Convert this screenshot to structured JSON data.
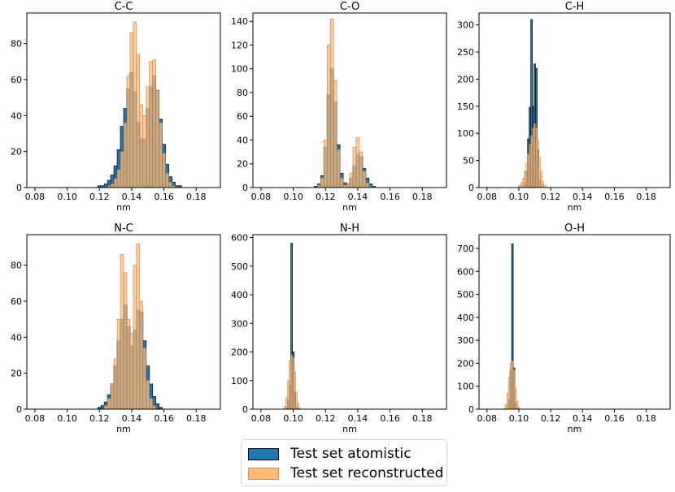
{
  "chart_data": [
    {
      "type": "histogram",
      "title": "C-C",
      "xlabel": "nm",
      "ylim": [
        0,
        97
      ],
      "yticks": [
        0,
        20,
        40,
        60,
        80
      ],
      "series": [
        {
          "name": "Test set atomistic",
          "color": "#1f77b4",
          "bins": [
            [
              0.12,
              1
            ],
            [
              0.122,
              1
            ],
            [
              0.124,
              2
            ],
            [
              0.126,
              4
            ],
            [
              0.128,
              7
            ],
            [
              0.13,
              12
            ],
            [
              0.132,
              21
            ],
            [
              0.134,
              34
            ],
            [
              0.136,
              44
            ],
            [
              0.138,
              55
            ],
            [
              0.14,
              64
            ],
            [
              0.142,
              53
            ],
            [
              0.144,
              36
            ],
            [
              0.146,
              27
            ],
            [
              0.148,
              27
            ],
            [
              0.15,
              44
            ],
            [
              0.152,
              56
            ],
            [
              0.154,
              62
            ],
            [
              0.156,
              54
            ],
            [
              0.158,
              38
            ],
            [
              0.16,
              24
            ],
            [
              0.162,
              13
            ],
            [
              0.164,
              6
            ],
            [
              0.166,
              3
            ],
            [
              0.168,
              1
            ],
            [
              0.17,
              1
            ]
          ]
        },
        {
          "name": "Test set reconstructed",
          "color": "#ffbb78",
          "bins": [
            [
              0.126,
              1
            ],
            [
              0.128,
              2
            ],
            [
              0.13,
              5
            ],
            [
              0.132,
              10
            ],
            [
              0.134,
              20
            ],
            [
              0.136,
              36
            ],
            [
              0.138,
              62
            ],
            [
              0.14,
              86
            ],
            [
              0.142,
              92
            ],
            [
              0.144,
              74
            ],
            [
              0.146,
              46
            ],
            [
              0.148,
              40
            ],
            [
              0.15,
              56
            ],
            [
              0.152,
              70
            ],
            [
              0.154,
              71
            ],
            [
              0.156,
              54
            ],
            [
              0.158,
              36
            ],
            [
              0.16,
              19
            ],
            [
              0.162,
              8
            ],
            [
              0.164,
              3
            ],
            [
              0.166,
              1
            ]
          ]
        }
      ]
    },
    {
      "type": "histogram",
      "title": "C-O",
      "xlabel": "nm",
      "ylim": [
        0,
        147
      ],
      "yticks": [
        0,
        20,
        40,
        60,
        80,
        100,
        120,
        140
      ],
      "series": [
        {
          "name": "Test set atomistic",
          "color": "#1f77b4",
          "bins": [
            [
              0.114,
              1
            ],
            [
              0.116,
              3
            ],
            [
              0.118,
              10
            ],
            [
              0.12,
              34
            ],
            [
              0.122,
              78
            ],
            [
              0.124,
              100
            ],
            [
              0.126,
              72
            ],
            [
              0.128,
              36
            ],
            [
              0.13,
              12
            ],
            [
              0.132,
              4
            ],
            [
              0.134,
              3
            ],
            [
              0.136,
              8
            ],
            [
              0.138,
              18
            ],
            [
              0.14,
              28
            ],
            [
              0.142,
              26
            ],
            [
              0.144,
              16
            ],
            [
              0.146,
              8
            ],
            [
              0.148,
              3
            ],
            [
              0.15,
              1
            ]
          ]
        },
        {
          "name": "Test set reconstructed",
          "color": "#ffbb78",
          "bins": [
            [
              0.116,
              2
            ],
            [
              0.118,
              8
            ],
            [
              0.12,
              40
            ],
            [
              0.122,
              120
            ],
            [
              0.124,
              142
            ],
            [
              0.126,
              90
            ],
            [
              0.128,
              32
            ],
            [
              0.13,
              8
            ],
            [
              0.132,
              2
            ],
            [
              0.134,
              3
            ],
            [
              0.136,
              12
            ],
            [
              0.138,
              34
            ],
            [
              0.14,
              42
            ],
            [
              0.142,
              30
            ],
            [
              0.144,
              14
            ],
            [
              0.146,
              4
            ],
            [
              0.148,
              1
            ]
          ]
        }
      ]
    },
    {
      "type": "histogram",
      "title": "C-H",
      "xlabel": "nm",
      "ylim": [
        0,
        322
      ],
      "yticks": [
        0,
        50,
        100,
        150,
        200,
        250,
        300
      ],
      "series": [
        {
          "name": "Test set atomistic",
          "color": "#1f77b4",
          "bins": [
            [
              0.103,
              2
            ],
            [
              0.104,
              8
            ],
            [
              0.105,
              30
            ],
            [
              0.106,
              90
            ],
            [
              0.107,
              148
            ],
            [
              0.108,
              310
            ],
            [
              0.109,
              150
            ],
            [
              0.11,
              228
            ],
            [
              0.111,
              220
            ],
            [
              0.112,
              70
            ],
            [
              0.113,
              14
            ],
            [
              0.114,
              3
            ]
          ]
        },
        {
          "name": "Test set reconstructed",
          "color": "#ffbb78",
          "bins": [
            [
              0.1,
              2
            ],
            [
              0.101,
              5
            ],
            [
              0.102,
              10
            ],
            [
              0.103,
              18
            ],
            [
              0.104,
              30
            ],
            [
              0.105,
              44
            ],
            [
              0.106,
              62
            ],
            [
              0.107,
              80
            ],
            [
              0.108,
              96
            ],
            [
              0.109,
              110
            ],
            [
              0.11,
              118
            ],
            [
              0.111,
              110
            ],
            [
              0.112,
              88
            ],
            [
              0.113,
              56
            ],
            [
              0.114,
              30
            ],
            [
              0.115,
              12
            ],
            [
              0.116,
              5
            ],
            [
              0.117,
              2
            ]
          ]
        }
      ]
    },
    {
      "type": "histogram",
      "title": "N-C",
      "xlabel": "nm",
      "ylim": [
        0,
        97
      ],
      "yticks": [
        0,
        20,
        40,
        60,
        80
      ],
      "series": [
        {
          "name": "Test set atomistic",
          "color": "#1f77b4",
          "bins": [
            [
              0.12,
              1
            ],
            [
              0.122,
              2
            ],
            [
              0.124,
              4
            ],
            [
              0.126,
              8
            ],
            [
              0.128,
              14
            ],
            [
              0.13,
              24
            ],
            [
              0.132,
              38
            ],
            [
              0.134,
              50
            ],
            [
              0.136,
              58
            ],
            [
              0.138,
              46
            ],
            [
              0.14,
              35
            ],
            [
              0.142,
              44
            ],
            [
              0.144,
              55
            ],
            [
              0.146,
              54
            ],
            [
              0.148,
              38
            ],
            [
              0.15,
              24
            ],
            [
              0.152,
              14
            ],
            [
              0.154,
              7
            ],
            [
              0.156,
              3
            ],
            [
              0.158,
              1
            ]
          ]
        },
        {
          "name": "Test set reconstructed",
          "color": "#ffbb78",
          "bins": [
            [
              0.124,
              2
            ],
            [
              0.126,
              6
            ],
            [
              0.128,
              14
            ],
            [
              0.13,
              28
            ],
            [
              0.132,
              50
            ],
            [
              0.134,
              86
            ],
            [
              0.136,
              76
            ],
            [
              0.138,
              50
            ],
            [
              0.14,
              42
            ],
            [
              0.142,
              80
            ],
            [
              0.144,
              92
            ],
            [
              0.146,
              60
            ],
            [
              0.148,
              34
            ],
            [
              0.15,
              16
            ],
            [
              0.152,
              6
            ],
            [
              0.154,
              2
            ]
          ]
        }
      ]
    },
    {
      "type": "histogram",
      "title": "N-H",
      "xlabel": "nm",
      "ylim": [
        0,
        610
      ],
      "yticks": [
        0,
        100,
        200,
        300,
        400,
        500,
        600
      ],
      "series": [
        {
          "name": "Test set atomistic",
          "color": "#1f77b4",
          "bins": [
            [
              0.096,
              5
            ],
            [
              0.097,
              30
            ],
            [
              0.098,
              85
            ],
            [
              0.099,
              580
            ],
            [
              0.1,
              200
            ],
            [
              0.101,
              60
            ],
            [
              0.102,
              10
            ]
          ]
        },
        {
          "name": "Test set reconstructed",
          "color": "#ffbb78",
          "bins": [
            [
              0.094,
              2
            ],
            [
              0.095,
              10
            ],
            [
              0.096,
              40
            ],
            [
              0.097,
              100
            ],
            [
              0.098,
              170
            ],
            [
              0.099,
              190
            ],
            [
              0.1,
              180
            ],
            [
              0.101,
              130
            ],
            [
              0.102,
              60
            ],
            [
              0.103,
              22
            ],
            [
              0.104,
              5
            ]
          ]
        }
      ]
    },
    {
      "type": "histogram",
      "title": "O-H",
      "xlabel": "nm",
      "ylim": [
        0,
        760
      ],
      "yticks": [
        0,
        100,
        200,
        300,
        400,
        500,
        600,
        700
      ],
      "series": [
        {
          "name": "Test set atomistic",
          "color": "#1f77b4",
          "bins": [
            [
              0.093,
              5
            ],
            [
              0.094,
              40
            ],
            [
              0.095,
              170
            ],
            [
              0.096,
              720
            ],
            [
              0.097,
              180
            ],
            [
              0.098,
              25
            ],
            [
              0.099,
              5
            ]
          ]
        },
        {
          "name": "Test set reconstructed",
          "color": "#ffbb78",
          "bins": [
            [
              0.091,
              3
            ],
            [
              0.092,
              20
            ],
            [
              0.093,
              70
            ],
            [
              0.094,
              140
            ],
            [
              0.095,
              200
            ],
            [
              0.096,
              210
            ],
            [
              0.097,
              170
            ],
            [
              0.098,
              90
            ],
            [
              0.099,
              35
            ],
            [
              0.1,
              8
            ]
          ]
        }
      ]
    }
  ],
  "xaxis": {
    "xlim": [
      0.075,
      0.195
    ],
    "binwidth": {
      "C-C": 0.002,
      "C-O": 0.002,
      "C-H": 0.001,
      "N-C": 0.002,
      "N-H": 0.001,
      "O-H": 0.001
    },
    "xticks": [
      0.08,
      0.1,
      0.12,
      0.14,
      0.16,
      0.18
    ]
  },
  "legend": {
    "placement": "bottom-center",
    "items": [
      {
        "label": "Test set atomistic",
        "color": "#1f77b4"
      },
      {
        "label": "Test set reconstructed",
        "color": "#ffbb78"
      }
    ]
  }
}
